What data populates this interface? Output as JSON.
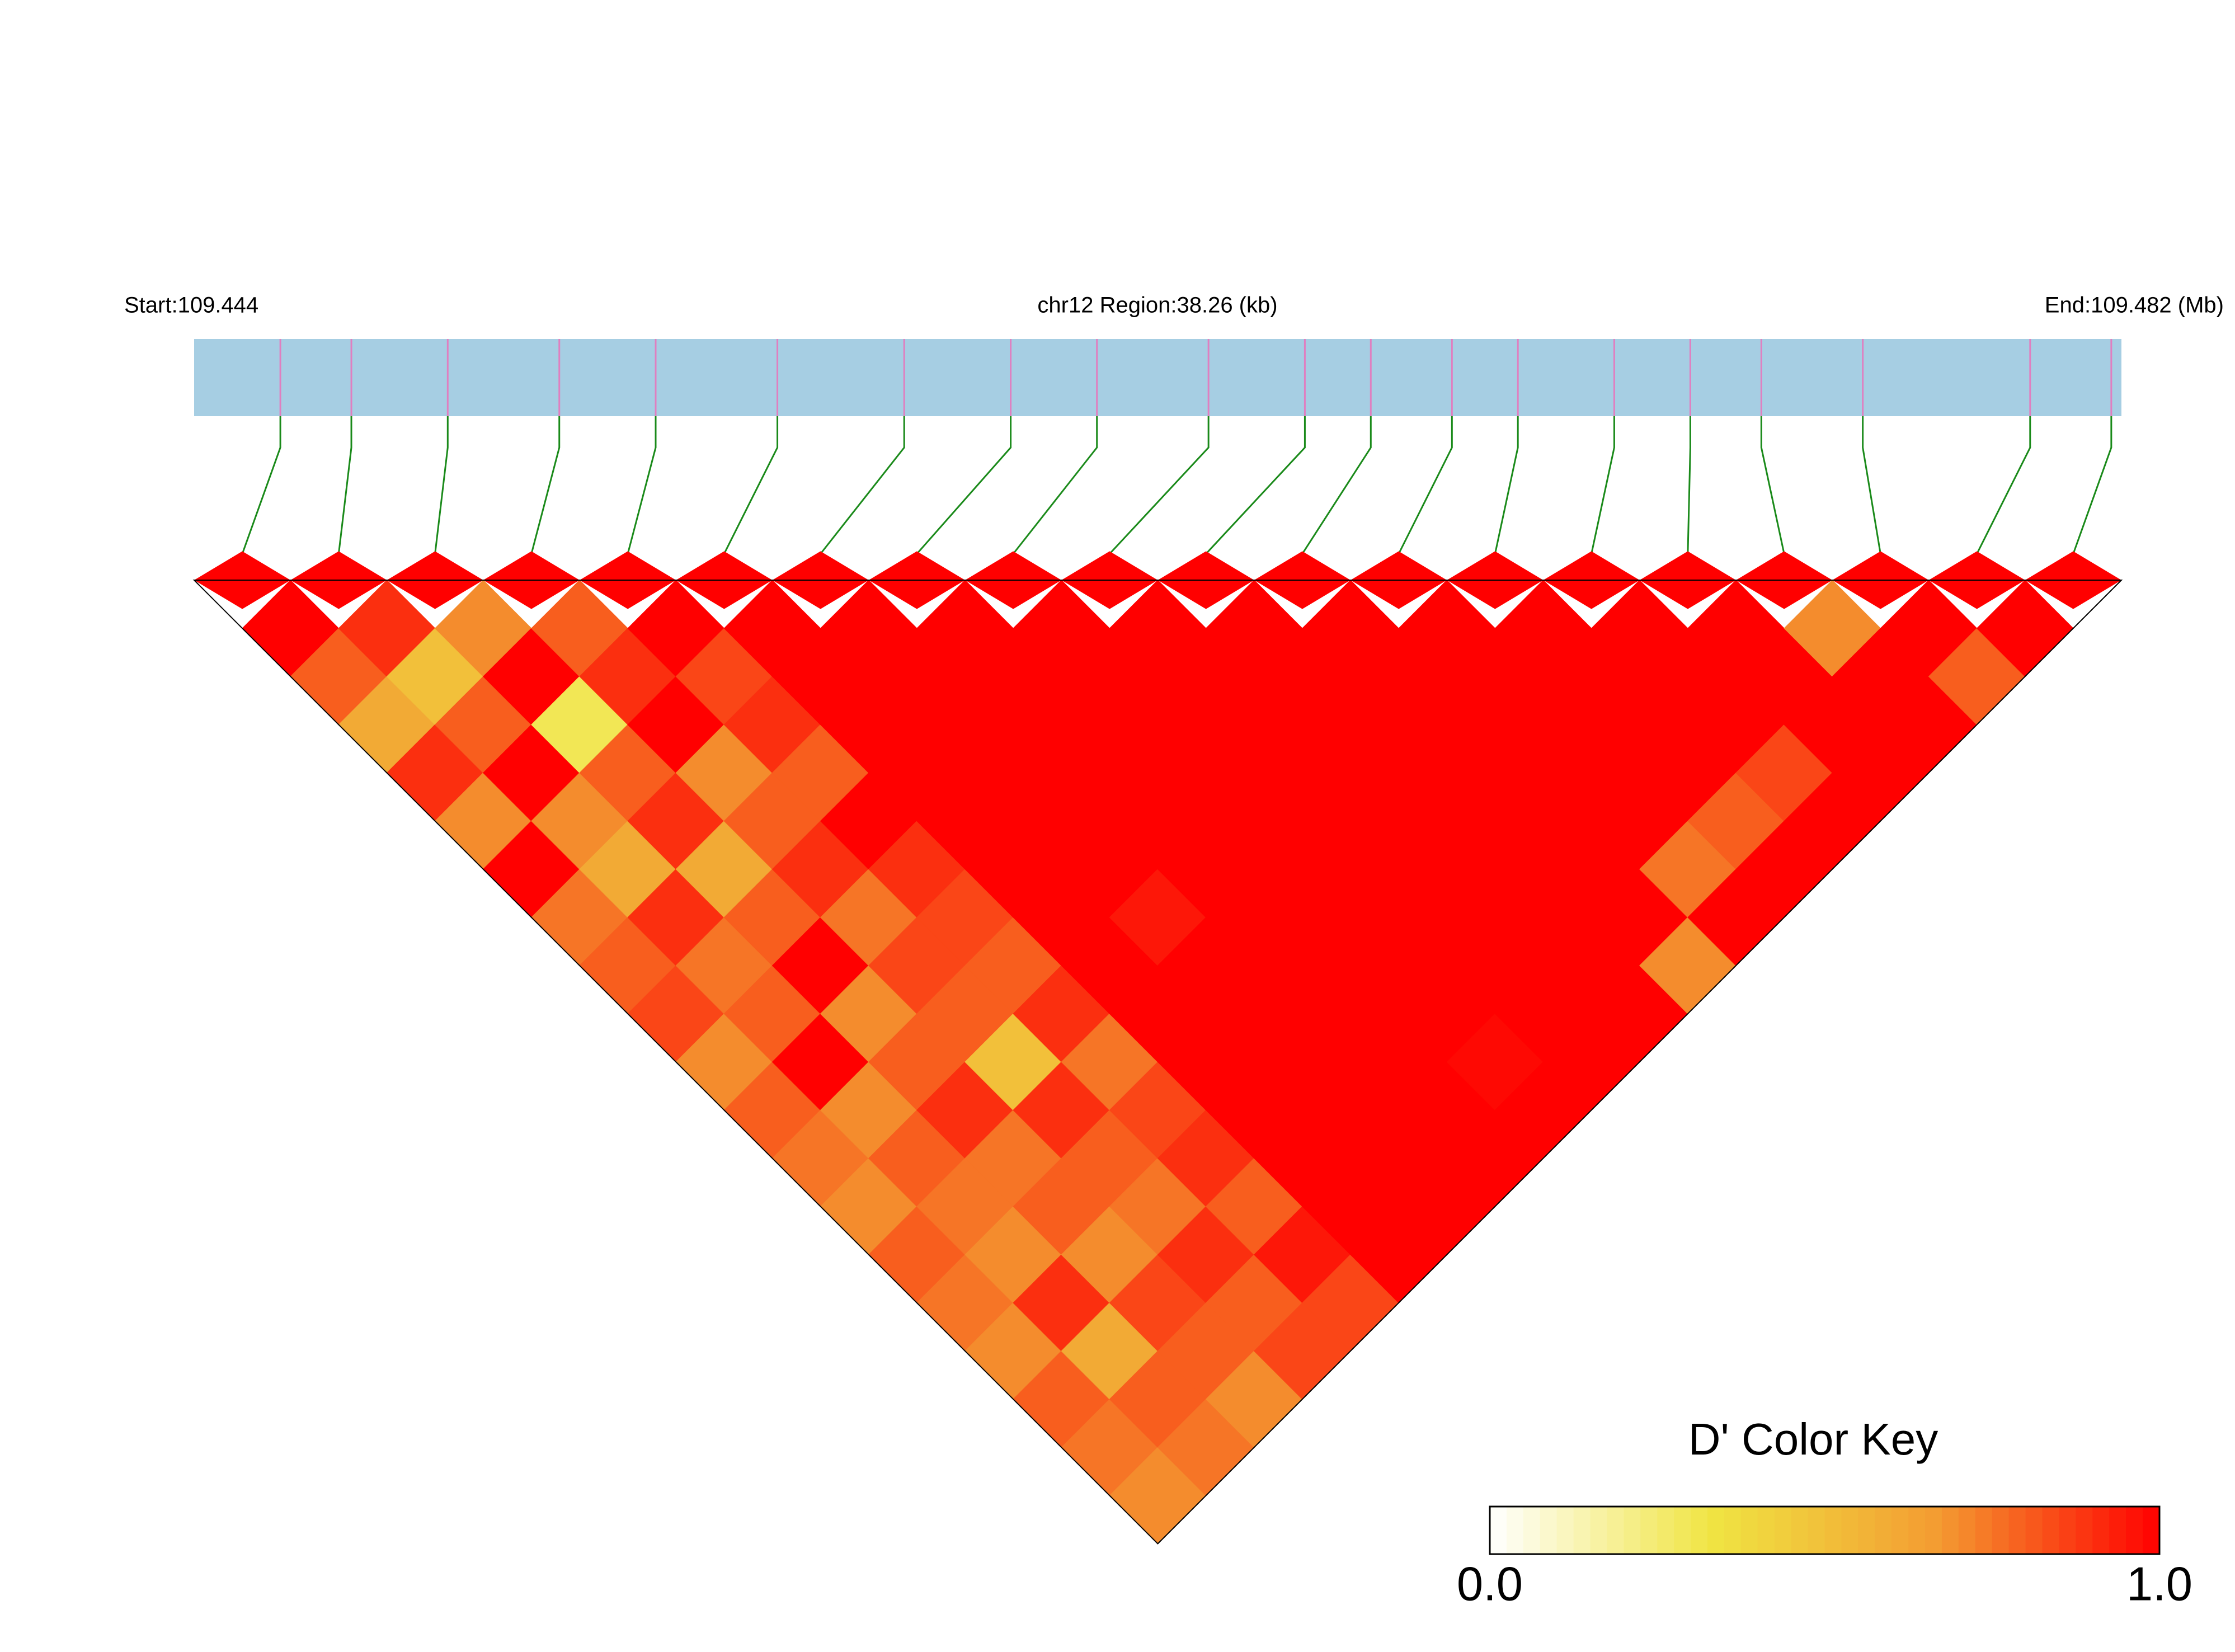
{
  "chart_data": {
    "type": "heatmap",
    "start_label": "Start:109.444",
    "region_label": "chr12 Region:38.26 (kb)",
    "end_label": "End:109.482 (Mb)",
    "xlim": [
      109.444,
      109.482
    ],
    "positions": [
      109.4457,
      109.4471,
      109.449,
      109.4512,
      109.4531,
      109.4555,
      109.458,
      109.4601,
      109.4618,
      109.464,
      109.4659,
      109.4672,
      109.4688,
      109.4701,
      109.472,
      109.4735,
      109.4749,
      109.4769,
      109.4802,
      109.4818
    ],
    "dprime": [
      [
        1,
        0.8,
        0.6,
        0.9,
        0.7,
        1,
        0.75,
        0.8,
        0.85,
        0.7,
        0.8,
        0.75,
        0.7,
        0.8,
        0.75,
        0.7,
        0.8,
        0.75,
        0.7
      ],
      [
        0.9,
        0.5,
        0.8,
        1,
        0.7,
        0.6,
        0.9,
        0.75,
        0.8,
        1,
        0.7,
        0.8,
        0.75,
        0.7,
        0.9,
        0.6,
        0.8,
        0.75
      ],
      [
        0.7,
        1,
        0.3,
        0.8,
        0.9,
        0.6,
        0.8,
        1,
        0.7,
        0.8,
        0.9,
        0.75,
        0.8,
        0.7,
        0.85,
        0.8,
        0.7
      ],
      [
        0.8,
        0.9,
        1,
        0.7,
        0.8,
        0.9,
        0.75,
        0.85,
        0.8,
        0.5,
        0.9,
        0.8,
        0.75,
        0.9,
        0.8,
        0.85
      ],
      [
        1,
        0.85,
        0.9,
        0.8,
        1,
        0.9,
        0.85,
        0.8,
        0.9,
        0.75,
        0.85,
        0.9,
        0.8,
        0.95,
        0.85
      ],
      [
        1,
        1,
        1,
        1,
        1,
        1,
        1,
        1,
        1,
        1,
        1,
        1,
        1,
        1
      ],
      [
        1,
        1,
        1,
        1,
        1,
        1,
        0.95,
        1,
        1,
        1,
        1,
        1,
        1
      ],
      [
        1,
        1,
        1,
        1,
        1,
        1,
        1,
        1,
        1,
        1,
        1,
        1
      ],
      [
        1,
        1,
        1,
        1,
        1,
        1,
        1,
        1,
        1,
        0.98,
        1
      ],
      [
        1,
        1,
        1,
        1,
        1,
        1,
        1,
        1,
        1,
        1
      ],
      [
        1,
        1,
        1,
        1,
        1,
        1,
        1,
        1,
        1
      ],
      [
        1,
        1,
        1,
        1,
        1,
        1,
        1,
        0.7
      ],
      [
        1,
        1,
        1,
        1,
        1,
        0.75,
        1
      ],
      [
        1,
        1,
        1,
        1,
        0.8,
        1
      ],
      [
        1,
        1,
        1,
        0.85,
        1
      ],
      [
        1,
        1,
        1,
        1
      ],
      [
        0.7,
        1,
        1
      ],
      [
        1,
        0.8
      ],
      [
        1
      ]
    ],
    "colors": [
      "#ffffff",
      "#f0e442",
      "#f39c32",
      "#ff0000"
    ],
    "key_title": "D' Color Key",
    "key_ticks": [
      {
        "value": 0,
        "label": "0.0"
      },
      {
        "value": 1,
        "label": "1.0"
      }
    ]
  }
}
